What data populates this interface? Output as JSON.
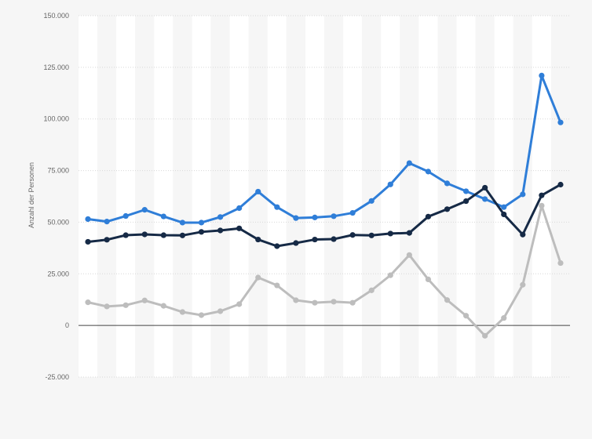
{
  "chart_data": {
    "type": "line",
    "title": "",
    "xlabel": "",
    "ylabel": "Anzahl der Personen",
    "ylim": [
      -25000,
      150000
    ],
    "yticks": [
      150000,
      125000,
      100000,
      75000,
      50000,
      25000,
      0,
      -25000
    ],
    "ytick_labels": [
      "150.000",
      "125.000",
      "100.000",
      "75.000",
      "50.000",
      "25.000",
      "0",
      "-25.000"
    ],
    "x": [
      1,
      2,
      3,
      4,
      5,
      6,
      7,
      8,
      9,
      10,
      11,
      12,
      13,
      14,
      15,
      16,
      17,
      18,
      19,
      20,
      21,
      22,
      23,
      24,
      25,
      26
    ],
    "grid": true,
    "legend": "none",
    "series": [
      {
        "color": "#2f7ed8",
        "values": [
          51500,
          50300,
          53000,
          56000,
          52800,
          49800,
          49800,
          52500,
          56800,
          64800,
          57300,
          52000,
          52300,
          52900,
          54500,
          60300,
          68300,
          78600,
          74500,
          68800,
          65000,
          61200,
          57300,
          63500,
          121000,
          98300
        ]
      },
      {
        "color": "#162a46",
        "values": [
          40500,
          41500,
          43700,
          44100,
          43700,
          43600,
          45300,
          46000,
          47000,
          41600,
          38400,
          39900,
          41600,
          41800,
          43800,
          43600,
          44500,
          44800,
          52700,
          56300,
          60200,
          66700,
          53800,
          44000,
          63000,
          68200
        ]
      },
      {
        "color": "#bdbdbd",
        "values": [
          11200,
          9200,
          9800,
          12100,
          9500,
          6500,
          5000,
          6900,
          10300,
          23200,
          19400,
          12200,
          11000,
          11500,
          11000,
          17000,
          24300,
          34100,
          22300,
          12300,
          4700,
          -5000,
          3600,
          19700,
          58000,
          30200
        ]
      }
    ]
  }
}
